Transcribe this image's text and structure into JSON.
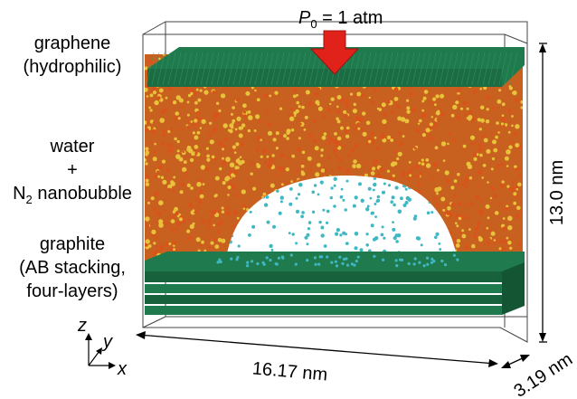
{
  "pressure": {
    "symbol": "P",
    "subscript": "0",
    "value": " = 1 atm"
  },
  "labels": {
    "graphene_line1": "graphene",
    "graphene_line2": "(hydrophilic)",
    "water_line1": "water",
    "water_line2": "+",
    "bubble_n": "N",
    "bubble_sub": "2",
    "bubble_rest": " nanobubble",
    "graphite_line1": "graphite",
    "graphite_line2": "(AB stacking,",
    "graphite_line3": "four-layers)"
  },
  "axes": {
    "z": "z",
    "y": "y",
    "x": "x"
  },
  "dimensions": {
    "width": "16.17 nm",
    "height": "13.0 nm",
    "depth": "3.19 nm"
  },
  "colors": {
    "graphene": "#1f7a4d",
    "water_o": "#d9541a",
    "water_h": "#e8c23a",
    "nitrogen": "#3fb8c4",
    "arrow": "#e0221b"
  }
}
